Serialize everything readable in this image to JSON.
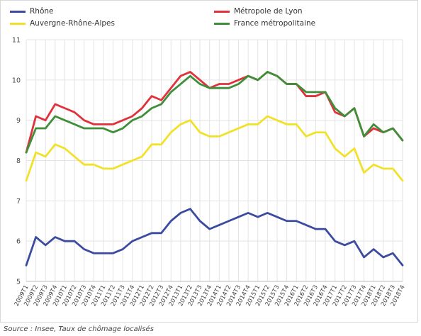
{
  "chart_data": {
    "type": "line",
    "title": "",
    "xlabel": "",
    "ylabel": "",
    "ylim": [
      5,
      11
    ],
    "yticks": [
      5,
      6,
      7,
      8,
      9,
      10,
      11
    ],
    "grid": true,
    "legend_position": "top",
    "categories": [
      "2009T1",
      "2009T2",
      "2009T3",
      "2009T4",
      "2010T1",
      "2010T2",
      "2010T3",
      "2010T4",
      "2011T1",
      "2011T2",
      "2011T3",
      "2011T4",
      "2012T1",
      "2012T2",
      "2012T3",
      "2012T4",
      "2013T1",
      "2013T2",
      "2013T3",
      "2013T4",
      "2014T1",
      "2014T2",
      "2014T3",
      "2014T4",
      "2015T1",
      "2015T2",
      "2015T3",
      "2015T4",
      "2016T1",
      "2016T2",
      "2016T3",
      "2016T4",
      "2017T1",
      "2017T2",
      "2017T3",
      "2017T4",
      "2018T1",
      "2018T2",
      "2018T3",
      "2018T4"
    ],
    "series": [
      {
        "name": "Rhône",
        "color": "#3b4ba0",
        "values": [
          5.4,
          6.1,
          5.9,
          6.1,
          6.0,
          6.0,
          5.8,
          5.7,
          5.7,
          5.7,
          5.8,
          6.0,
          6.1,
          6.2,
          6.2,
          6.5,
          6.7,
          6.8,
          6.5,
          6.3,
          6.4,
          6.5,
          6.6,
          6.7,
          6.6,
          6.7,
          6.6,
          6.5,
          6.5,
          6.4,
          6.3,
          6.3,
          6.0,
          5.9,
          6.0,
          5.6,
          5.8,
          5.6,
          5.7,
          5.4
        ]
      },
      {
        "name": "Auvergne-Rhône-Alpes",
        "color": "#f2e12a",
        "values": [
          7.5,
          8.2,
          8.1,
          8.4,
          8.3,
          8.1,
          7.9,
          7.9,
          7.8,
          7.8,
          7.9,
          8.0,
          8.1,
          8.4,
          8.4,
          8.7,
          8.9,
          9.0,
          8.7,
          8.6,
          8.6,
          8.7,
          8.8,
          8.9,
          8.9,
          9.1,
          9.0,
          8.9,
          8.9,
          8.6,
          8.7,
          8.7,
          8.3,
          8.1,
          8.3,
          7.7,
          7.9,
          7.8,
          7.8,
          7.5
        ]
      },
      {
        "name": "Métropole de Lyon",
        "color": "#e0323c",
        "values": [
          8.2,
          9.1,
          9.0,
          9.4,
          9.3,
          9.2,
          9.0,
          8.9,
          8.9,
          8.9,
          9.0,
          9.1,
          9.3,
          9.6,
          9.5,
          9.8,
          10.1,
          10.2,
          10.0,
          9.8,
          9.9,
          9.9,
          10.0,
          10.1,
          10.0,
          10.2,
          10.1,
          9.9,
          9.9,
          9.6,
          9.6,
          9.7,
          9.2,
          9.1,
          9.3,
          8.6,
          8.8,
          8.7,
          8.8,
          8.5
        ]
      },
      {
        "name": "France métropolitaine",
        "color": "#3f8f3a",
        "values": [
          8.2,
          8.8,
          8.8,
          9.1,
          9.0,
          8.9,
          8.8,
          8.8,
          8.8,
          8.7,
          8.8,
          9.0,
          9.1,
          9.3,
          9.4,
          9.7,
          9.9,
          10.1,
          9.9,
          9.8,
          9.8,
          9.8,
          9.9,
          10.1,
          10.0,
          10.2,
          10.1,
          9.9,
          9.9,
          9.7,
          9.7,
          9.7,
          9.3,
          9.1,
          9.3,
          8.6,
          8.9,
          8.7,
          8.8,
          8.5
        ]
      }
    ]
  },
  "legend": [
    {
      "label": "Rhône",
      "color": "#3b4ba0"
    },
    {
      "label": "Métropole de Lyon",
      "color": "#e0323c"
    },
    {
      "label": "Auvergne-Rhône-Alpes",
      "color": "#f2e12a"
    },
    {
      "label": "France métropolitaine",
      "color": "#3f8f3a"
    }
  ],
  "source": "Source : Insee, Taux de chômage localisés"
}
